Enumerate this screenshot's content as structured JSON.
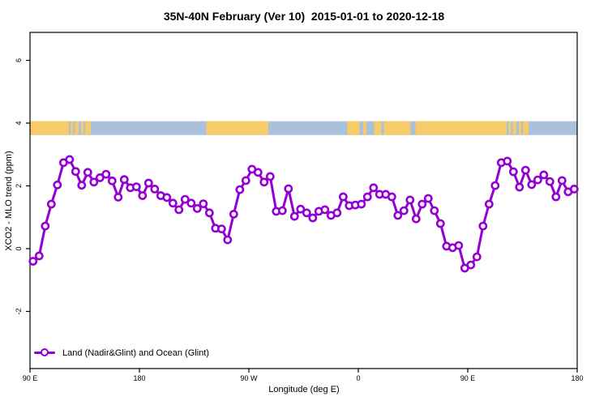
{
  "title": "35N-40N February (Ver 10)  2015-01-01 to 2020-12-18",
  "legend": {
    "label": "Land (Nadir&Glint) and Ocean (Glint)"
  },
  "colors": {
    "line": "#9400D3",
    "marker_fill": "#ffffff",
    "land": "#F7CA6B",
    "ocean": "#A9C1DB",
    "axis": "#000000"
  },
  "chart_data": {
    "type": "line",
    "title": "35N-40N February (Ver 10)  2015-01-01 to 2020-12-18",
    "xlabel": "Longitude (deg E)",
    "ylabel": "XCO2 - MLO trend (ppm)",
    "xlim": [
      90,
      540
    ],
    "ylim": [
      -3.82,
      6.89
    ],
    "grid": false,
    "legend_position": "bottom-left",
    "x_ticks": [
      {
        "value": 90,
        "label": "90 E"
      },
      {
        "value": 180,
        "label": "180"
      },
      {
        "value": 270,
        "label": "90 W"
      },
      {
        "value": 360,
        "label": "0"
      },
      {
        "value": 450,
        "label": "90 E"
      },
      {
        "value": 540,
        "label": "180"
      }
    ],
    "y_ticks": [
      {
        "value": -2,
        "label": "-2"
      },
      {
        "value": 0,
        "label": "0"
      },
      {
        "value": 2,
        "label": "2"
      },
      {
        "value": 4,
        "label": "4"
      },
      {
        "value": 6,
        "label": "6"
      }
    ],
    "map_band": {
      "y_range": [
        3.62,
        4.06
      ],
      "land_segments_lon": [
        [
          90,
          122
        ],
        [
          123.5,
          125.5
        ],
        [
          127,
          130
        ],
        [
          132,
          134
        ],
        [
          135.5,
          140
        ],
        [
          235,
          286
        ],
        [
          351,
          361
        ],
        [
          364,
          366.5
        ],
        [
          373,
          379
        ],
        [
          381,
          403
        ],
        [
          407,
          482
        ],
        [
          483.5,
          485.5
        ],
        [
          487,
          490
        ],
        [
          492,
          494
        ],
        [
          495.5,
          500
        ]
      ]
    },
    "series": [
      {
        "name": "Land (Nadir&Glint) and Ocean (Glint)",
        "x": [
          92.5,
          97.5,
          102.5,
          107.5,
          112.5,
          117.5,
          122.5,
          127.5,
          132.5,
          137.5,
          142.5,
          147.5,
          152.5,
          157.5,
          162.5,
          167.5,
          172.5,
          177.5,
          182.5,
          187.5,
          192.5,
          197.5,
          202.5,
          207.5,
          212.5,
          217.5,
          222.5,
          227.5,
          232.5,
          237.5,
          242.5,
          247.5,
          252.5,
          257.5,
          262.5,
          267.5,
          272.5,
          277.5,
          282.5,
          287.5,
          292.5,
          297.5,
          302.5,
          307.5,
          312.5,
          317.5,
          322.5,
          327.5,
          332.5,
          337.5,
          342.5,
          347.5,
          352.5,
          357.5,
          362.5,
          367.5,
          372.5,
          377.5,
          382.5,
          387.5,
          392.5,
          397.5,
          402.5,
          407.5,
          412.5,
          417.5,
          422.5,
          427.5,
          432.5,
          437.5,
          442.5,
          447.5,
          452.5,
          457.5,
          462.5,
          467.5,
          472.5,
          477.5,
          482.5,
          487.5,
          492.5,
          497.5,
          502.5,
          507.5,
          512.5,
          517.5,
          522.5,
          527.5,
          532.5,
          537.5
        ],
        "y": [
          -0.4,
          -0.23,
          0.72,
          1.42,
          2.03,
          2.74,
          2.84,
          2.46,
          2.02,
          2.43,
          2.12,
          2.26,
          2.37,
          2.16,
          1.64,
          2.2,
          1.94,
          1.97,
          1.69,
          2.09,
          1.9,
          1.69,
          1.63,
          1.45,
          1.24,
          1.57,
          1.45,
          1.28,
          1.43,
          1.14,
          0.65,
          0.63,
          0.28,
          1.1,
          1.88,
          2.17,
          2.53,
          2.43,
          2.12,
          2.3,
          1.19,
          1.21,
          1.91,
          1.03,
          1.26,
          1.14,
          0.98,
          1.19,
          1.24,
          1.06,
          1.14,
          1.65,
          1.37,
          1.39,
          1.42,
          1.65,
          1.94,
          1.73,
          1.73,
          1.65,
          1.06,
          1.21,
          1.55,
          0.95,
          1.42,
          1.6,
          1.21,
          0.8,
          0.08,
          0.03,
          0.1,
          -0.62,
          -0.52,
          -0.26,
          0.72,
          1.42,
          2.01,
          2.74,
          2.79,
          2.45,
          1.96,
          2.5,
          2.04,
          2.19,
          2.35,
          2.14,
          1.65,
          2.17,
          1.81,
          1.9
        ]
      }
    ]
  }
}
